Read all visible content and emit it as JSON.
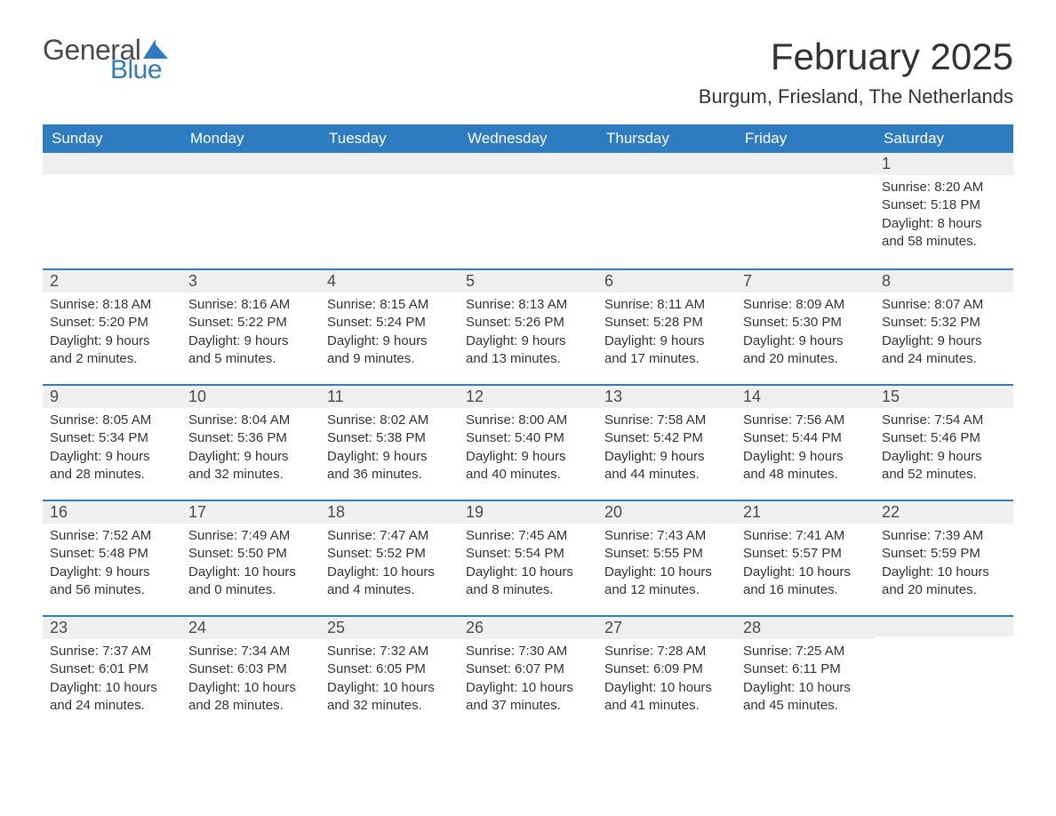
{
  "logo": {
    "text_general": "General",
    "text_blue": "Blue",
    "flag_color": "#2d7cc1"
  },
  "header": {
    "month_title": "February 2025",
    "location": "Burgum, Friesland, The Netherlands"
  },
  "colors": {
    "header_bg": "#2d7cc1",
    "header_text": "#ffffff",
    "daynum_bg": "#efefef",
    "row_border": "#2d7cc1",
    "body_text": "#333333",
    "logo_gray": "#4a4a4a",
    "logo_blue": "#2d7cc1"
  },
  "weekdays": [
    "Sunday",
    "Monday",
    "Tuesday",
    "Wednesday",
    "Thursday",
    "Friday",
    "Saturday"
  ],
  "weeks": [
    [
      null,
      null,
      null,
      null,
      null,
      null,
      {
        "day": "1",
        "sunrise": "Sunrise: 8:20 AM",
        "sunset": "Sunset: 5:18 PM",
        "dl1": "Daylight: 8 hours",
        "dl2": "and 58 minutes."
      }
    ],
    [
      {
        "day": "2",
        "sunrise": "Sunrise: 8:18 AM",
        "sunset": "Sunset: 5:20 PM",
        "dl1": "Daylight: 9 hours",
        "dl2": "and 2 minutes."
      },
      {
        "day": "3",
        "sunrise": "Sunrise: 8:16 AM",
        "sunset": "Sunset: 5:22 PM",
        "dl1": "Daylight: 9 hours",
        "dl2": "and 5 minutes."
      },
      {
        "day": "4",
        "sunrise": "Sunrise: 8:15 AM",
        "sunset": "Sunset: 5:24 PM",
        "dl1": "Daylight: 9 hours",
        "dl2": "and 9 minutes."
      },
      {
        "day": "5",
        "sunrise": "Sunrise: 8:13 AM",
        "sunset": "Sunset: 5:26 PM",
        "dl1": "Daylight: 9 hours",
        "dl2": "and 13 minutes."
      },
      {
        "day": "6",
        "sunrise": "Sunrise: 8:11 AM",
        "sunset": "Sunset: 5:28 PM",
        "dl1": "Daylight: 9 hours",
        "dl2": "and 17 minutes."
      },
      {
        "day": "7",
        "sunrise": "Sunrise: 8:09 AM",
        "sunset": "Sunset: 5:30 PM",
        "dl1": "Daylight: 9 hours",
        "dl2": "and 20 minutes."
      },
      {
        "day": "8",
        "sunrise": "Sunrise: 8:07 AM",
        "sunset": "Sunset: 5:32 PM",
        "dl1": "Daylight: 9 hours",
        "dl2": "and 24 minutes."
      }
    ],
    [
      {
        "day": "9",
        "sunrise": "Sunrise: 8:05 AM",
        "sunset": "Sunset: 5:34 PM",
        "dl1": "Daylight: 9 hours",
        "dl2": "and 28 minutes."
      },
      {
        "day": "10",
        "sunrise": "Sunrise: 8:04 AM",
        "sunset": "Sunset: 5:36 PM",
        "dl1": "Daylight: 9 hours",
        "dl2": "and 32 minutes."
      },
      {
        "day": "11",
        "sunrise": "Sunrise: 8:02 AM",
        "sunset": "Sunset: 5:38 PM",
        "dl1": "Daylight: 9 hours",
        "dl2": "and 36 minutes."
      },
      {
        "day": "12",
        "sunrise": "Sunrise: 8:00 AM",
        "sunset": "Sunset: 5:40 PM",
        "dl1": "Daylight: 9 hours",
        "dl2": "and 40 minutes."
      },
      {
        "day": "13",
        "sunrise": "Sunrise: 7:58 AM",
        "sunset": "Sunset: 5:42 PM",
        "dl1": "Daylight: 9 hours",
        "dl2": "and 44 minutes."
      },
      {
        "day": "14",
        "sunrise": "Sunrise: 7:56 AM",
        "sunset": "Sunset: 5:44 PM",
        "dl1": "Daylight: 9 hours",
        "dl2": "and 48 minutes."
      },
      {
        "day": "15",
        "sunrise": "Sunrise: 7:54 AM",
        "sunset": "Sunset: 5:46 PM",
        "dl1": "Daylight: 9 hours",
        "dl2": "and 52 minutes."
      }
    ],
    [
      {
        "day": "16",
        "sunrise": "Sunrise: 7:52 AM",
        "sunset": "Sunset: 5:48 PM",
        "dl1": "Daylight: 9 hours",
        "dl2": "and 56 minutes."
      },
      {
        "day": "17",
        "sunrise": "Sunrise: 7:49 AM",
        "sunset": "Sunset: 5:50 PM",
        "dl1": "Daylight: 10 hours",
        "dl2": "and 0 minutes."
      },
      {
        "day": "18",
        "sunrise": "Sunrise: 7:47 AM",
        "sunset": "Sunset: 5:52 PM",
        "dl1": "Daylight: 10 hours",
        "dl2": "and 4 minutes."
      },
      {
        "day": "19",
        "sunrise": "Sunrise: 7:45 AM",
        "sunset": "Sunset: 5:54 PM",
        "dl1": "Daylight: 10 hours",
        "dl2": "and 8 minutes."
      },
      {
        "day": "20",
        "sunrise": "Sunrise: 7:43 AM",
        "sunset": "Sunset: 5:55 PM",
        "dl1": "Daylight: 10 hours",
        "dl2": "and 12 minutes."
      },
      {
        "day": "21",
        "sunrise": "Sunrise: 7:41 AM",
        "sunset": "Sunset: 5:57 PM",
        "dl1": "Daylight: 10 hours",
        "dl2": "and 16 minutes."
      },
      {
        "day": "22",
        "sunrise": "Sunrise: 7:39 AM",
        "sunset": "Sunset: 5:59 PM",
        "dl1": "Daylight: 10 hours",
        "dl2": "and 20 minutes."
      }
    ],
    [
      {
        "day": "23",
        "sunrise": "Sunrise: 7:37 AM",
        "sunset": "Sunset: 6:01 PM",
        "dl1": "Daylight: 10 hours",
        "dl2": "and 24 minutes."
      },
      {
        "day": "24",
        "sunrise": "Sunrise: 7:34 AM",
        "sunset": "Sunset: 6:03 PM",
        "dl1": "Daylight: 10 hours",
        "dl2": "and 28 minutes."
      },
      {
        "day": "25",
        "sunrise": "Sunrise: 7:32 AM",
        "sunset": "Sunset: 6:05 PM",
        "dl1": "Daylight: 10 hours",
        "dl2": "and 32 minutes."
      },
      {
        "day": "26",
        "sunrise": "Sunrise: 7:30 AM",
        "sunset": "Sunset: 6:07 PM",
        "dl1": "Daylight: 10 hours",
        "dl2": "and 37 minutes."
      },
      {
        "day": "27",
        "sunrise": "Sunrise: 7:28 AM",
        "sunset": "Sunset: 6:09 PM",
        "dl1": "Daylight: 10 hours",
        "dl2": "and 41 minutes."
      },
      {
        "day": "28",
        "sunrise": "Sunrise: 7:25 AM",
        "sunset": "Sunset: 6:11 PM",
        "dl1": "Daylight: 10 hours",
        "dl2": "and 45 minutes."
      },
      null
    ]
  ]
}
